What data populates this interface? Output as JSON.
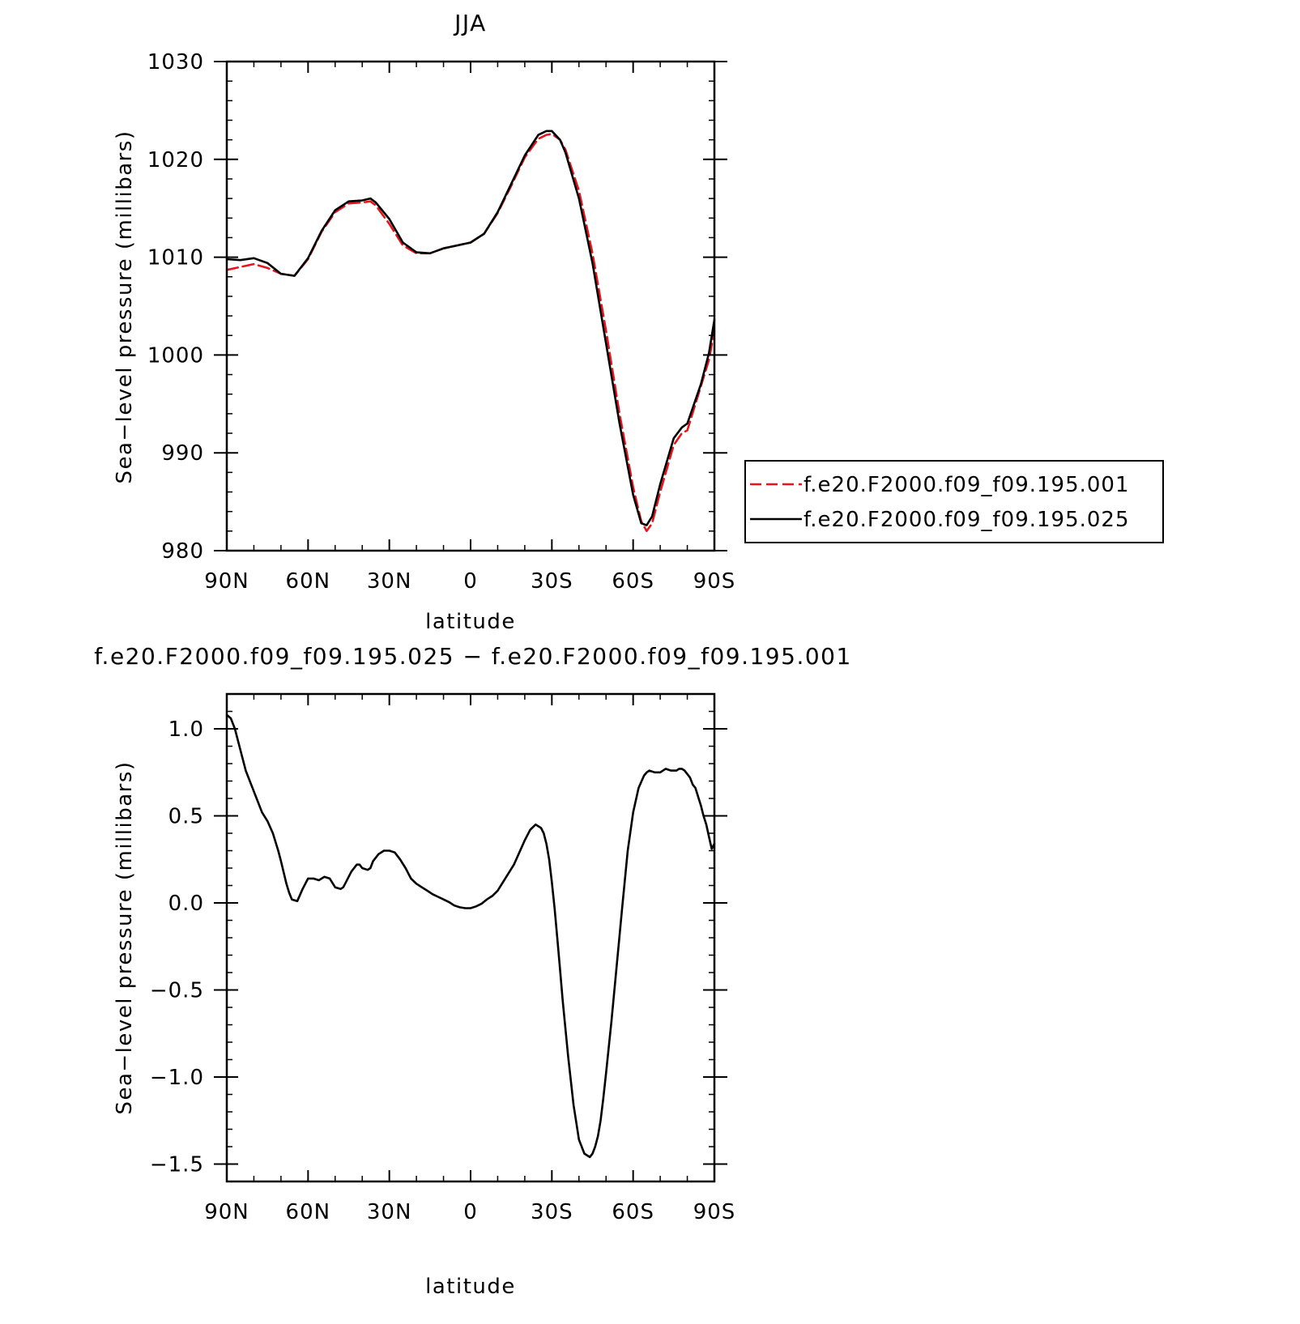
{
  "chart_data": [
    {
      "type": "line",
      "title": "JJA",
      "xlabel": "latitude",
      "ylabel": "Sea−level pressure (millibars)",
      "x_tick_labels": [
        "90N",
        "60N",
        "30N",
        "0",
        "30S",
        "60S",
        "90S"
      ],
      "x_tick_values": [
        90,
        60,
        30,
        0,
        -30,
        -60,
        -90
      ],
      "y_tick_labels": [
        "1030",
        "1020",
        "1010",
        "1000",
        "990",
        "980"
      ],
      "y_tick_values": [
        1030,
        1020,
        1010,
        1000,
        990,
        980
      ],
      "xlim": [
        90,
        -90
      ],
      "ylim": [
        980,
        1030
      ],
      "grid": false,
      "legend_placement": "right",
      "series": [
        {
          "name": "f.e20.F2000.f09_f09.195.001",
          "color": "#e8141b",
          "style": "dashed",
          "x": [
            90,
            85,
            80,
            75,
            70,
            65,
            60,
            55,
            50,
            45,
            40,
            37,
            35,
            30,
            25,
            20,
            15,
            10,
            5,
            0,
            -5,
            -10,
            -15,
            -20,
            -25,
            -28,
            -30,
            -33,
            -35,
            -40,
            -45,
            -50,
            -55,
            -60,
            -63,
            -65,
            -67,
            -70,
            -75,
            -78,
            -80,
            -85,
            -88,
            -90
          ],
          "y": [
            1008.7,
            1009.0,
            1009.3,
            1008.9,
            1008.3,
            1008.1,
            1009.8,
            1012.6,
            1014.6,
            1015.5,
            1015.6,
            1015.7,
            1015.3,
            1013.4,
            1011.2,
            1010.4,
            1010.4,
            1010.9,
            1011.2,
            1011.5,
            1012.4,
            1014.5,
            1017.3,
            1020.2,
            1022.1,
            1022.5,
            1022.6,
            1022.0,
            1021.0,
            1016.8,
            1010.4,
            1002.5,
            994.0,
            986.5,
            983.0,
            982.0,
            982.8,
            986.0,
            990.8,
            992.0,
            992.3,
            996.8,
            999.5,
            1002.5
          ]
        },
        {
          "name": "f.e20.F2000.f09_f09.195.025",
          "color": "#000000",
          "style": "solid",
          "x": [
            90,
            85,
            80,
            75,
            70,
            65,
            60,
            55,
            50,
            45,
            40,
            37,
            35,
            30,
            25,
            20,
            15,
            10,
            5,
            0,
            -5,
            -10,
            -15,
            -20,
            -25,
            -28,
            -30,
            -33,
            -35,
            -40,
            -45,
            -50,
            -55,
            -60,
            -63,
            -65,
            -67,
            -70,
            -75,
            -78,
            -80,
            -85,
            -88,
            -90
          ],
          "y": [
            1009.8,
            1009.7,
            1009.9,
            1009.4,
            1008.3,
            1008.1,
            1009.9,
            1012.7,
            1014.8,
            1015.7,
            1015.8,
            1016.0,
            1015.6,
            1013.9,
            1011.5,
            1010.5,
            1010.4,
            1010.9,
            1011.2,
            1011.5,
            1012.4,
            1014.6,
            1017.5,
            1020.4,
            1022.5,
            1022.9,
            1022.9,
            1022.0,
            1020.7,
            1016.0,
            1009.4,
            1001.2,
            993.0,
            985.7,
            982.8,
            982.6,
            983.5,
            986.8,
            991.5,
            992.6,
            993.0,
            997.0,
            1000.2,
            1003.6
          ]
        }
      ]
    },
    {
      "type": "line",
      "title": "f.e20.F2000.f09_f09.195.025 − f.e20.F2000.f09_f09.195.001",
      "xlabel": "latitude",
      "ylabel": "Sea−level pressure (millibars)",
      "x_tick_labels": [
        "90N",
        "60N",
        "30N",
        "0",
        "30S",
        "60S",
        "90S"
      ],
      "x_tick_values": [
        90,
        60,
        30,
        0,
        -30,
        -60,
        -90
      ],
      "y_tick_labels": [
        "1.0",
        "0.5",
        "0.0",
        "−0.5",
        "−1.0",
        "−1.5"
      ],
      "y_tick_values": [
        1.0,
        0.5,
        0.0,
        -0.5,
        -1.0,
        -1.5
      ],
      "xlim": [
        90,
        -90
      ],
      "ylim": [
        -1.6,
        1.2
      ],
      "grid": false,
      "series": [
        {
          "color": "#000000",
          "style": "solid",
          "x": [
            90,
            88.5,
            87,
            85,
            83,
            81,
            79,
            77,
            75,
            73,
            71,
            70,
            68,
            67,
            66,
            64,
            62,
            60,
            58,
            56,
            55,
            54,
            52,
            50,
            48,
            47,
            46,
            44,
            42,
            41,
            40,
            38,
            37,
            36,
            34,
            32,
            30,
            28,
            26,
            24,
            22,
            20,
            18,
            16,
            14,
            12,
            10,
            8,
            6,
            4,
            2,
            0,
            -2,
            -4,
            -6,
            -8,
            -10,
            -12,
            -14,
            -16,
            -18,
            -20,
            -22,
            -24,
            -26,
            -27,
            -28,
            -29,
            -30,
            -31,
            -32,
            -33,
            -34,
            -36,
            -38,
            -40,
            -42,
            -44,
            -45,
            -46,
            -47,
            -48,
            -49,
            -50,
            -52,
            -54,
            -56,
            -58,
            -60,
            -62,
            -64,
            -65,
            -66,
            -68,
            -70,
            -72,
            -74,
            -76,
            -77,
            -78,
            -79,
            -80,
            -81,
            -82,
            -83,
            -84,
            -85,
            -86,
            -87,
            -88,
            -89,
            -90
          ],
          "y": [
            1.08,
            1.06,
            1.0,
            0.88,
            0.76,
            0.68,
            0.6,
            0.52,
            0.47,
            0.4,
            0.3,
            0.24,
            0.11,
            0.06,
            0.02,
            0.01,
            0.08,
            0.14,
            0.14,
            0.13,
            0.14,
            0.15,
            0.14,
            0.09,
            0.08,
            0.09,
            0.12,
            0.18,
            0.22,
            0.22,
            0.2,
            0.19,
            0.2,
            0.24,
            0.28,
            0.3,
            0.3,
            0.29,
            0.25,
            0.2,
            0.14,
            0.11,
            0.09,
            0.07,
            0.05,
            0.035,
            0.02,
            0.005,
            -0.015,
            -0.025,
            -0.03,
            -0.03,
            -0.02,
            -0.005,
            0.02,
            0.04,
            0.07,
            0.12,
            0.17,
            0.22,
            0.29,
            0.36,
            0.42,
            0.45,
            0.43,
            0.4,
            0.34,
            0.25,
            0.12,
            -0.03,
            -0.2,
            -0.38,
            -0.56,
            -0.88,
            -1.16,
            -1.36,
            -1.44,
            -1.46,
            -1.44,
            -1.4,
            -1.34,
            -1.25,
            -1.12,
            -0.98,
            -0.68,
            -0.35,
            -0.02,
            0.3,
            0.52,
            0.66,
            0.73,
            0.75,
            0.76,
            0.75,
            0.75,
            0.77,
            0.76,
            0.76,
            0.77,
            0.77,
            0.76,
            0.74,
            0.72,
            0.68,
            0.66,
            0.61,
            0.56,
            0.5,
            0.45,
            0.38,
            0.31,
            0.34
          ]
        }
      ]
    }
  ]
}
